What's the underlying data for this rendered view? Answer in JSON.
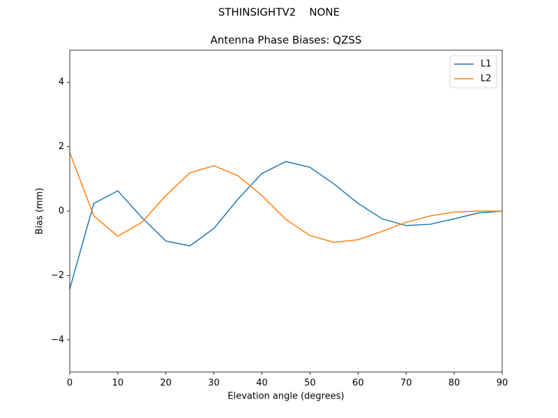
{
  "chart_data": {
    "type": "line",
    "suptitle": "STHINSIGHTV2    NONE",
    "title": "Antenna Phase Biases: QZSS",
    "x_label": "Elevation angle (degrees)",
    "y_label": "Bias (mm)",
    "x": [
      0,
      5,
      10,
      15,
      20,
      25,
      30,
      35,
      40,
      45,
      50,
      55,
      60,
      65,
      70,
      75,
      80,
      85,
      90
    ],
    "series": [
      {
        "name": "L1",
        "color": "#1f77b4",
        "values": [
          -2.42,
          0.24,
          0.63,
          -0.2,
          -0.93,
          -1.08,
          -0.54,
          0.37,
          1.17,
          1.54,
          1.36,
          0.84,
          0.24,
          -0.24,
          -0.45,
          -0.41,
          -0.24,
          -0.06,
          0
        ]
      },
      {
        "name": "L2",
        "color": "#ff7f0e",
        "values": [
          1.82,
          -0.15,
          -0.78,
          -0.35,
          0.48,
          1.19,
          1.41,
          1.1,
          0.48,
          -0.26,
          -0.76,
          -0.97,
          -0.89,
          -0.63,
          -0.35,
          -0.15,
          -0.03,
          0,
          0
        ]
      }
    ],
    "xlim": [
      0,
      90
    ],
    "xticks": [
      0,
      10,
      20,
      30,
      40,
      50,
      60,
      70,
      80,
      90
    ],
    "ylim": [
      -5,
      5
    ],
    "yticks": [
      {
        "value": -4,
        "label": "−4"
      },
      {
        "value": -2,
        "label": "−2"
      },
      0,
      2,
      4
    ],
    "grid": false,
    "legend": "upper right"
  }
}
